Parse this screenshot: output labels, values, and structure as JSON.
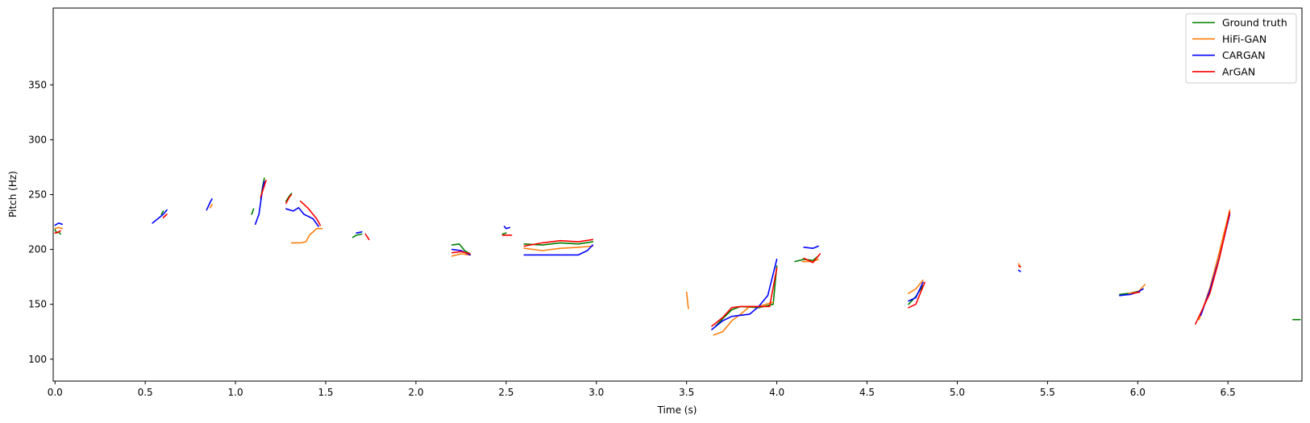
{
  "chart_data": {
    "type": "line",
    "xlabel": "Time (s)",
    "ylabel": "Pitch (Hz)",
    "xlim": [
      -0.01,
      6.91
    ],
    "ylim": [
      80,
      420
    ],
    "xticks": [
      0.0,
      0.5,
      1.0,
      1.5,
      2.0,
      2.5,
      3.0,
      3.5,
      4.0,
      4.5,
      5.0,
      5.5,
      6.0,
      6.5
    ],
    "xtick_labels": [
      "0.0",
      "0.5",
      "1.0",
      "1.5",
      "2.0",
      "2.5",
      "3.0",
      "3.5",
      "4.0",
      "4.5",
      "5.0",
      "5.5",
      "6.0",
      "6.5"
    ],
    "yticks": [
      100,
      150,
      200,
      250,
      300,
      350
    ],
    "ytick_labels": [
      "100",
      "150",
      "200",
      "250",
      "300",
      "350"
    ],
    "grid": false,
    "legend_position": "top-right",
    "series": [
      {
        "name": "Ground truth",
        "color": "#008000",
        "segments": [
          [
            [
              0.0,
              218
            ],
            [
              0.01,
              215
            ],
            [
              0.02,
              216
            ],
            [
              0.03,
              214
            ]
          ],
          [
            [
              0.59,
              232
            ],
            [
              0.6,
              235
            ]
          ],
          [
            [
              1.09,
              232
            ],
            [
              1.1,
              237
            ]
          ],
          [
            [
              1.14,
              246
            ],
            [
              1.15,
              257
            ],
            [
              1.16,
              265
            ]
          ],
          [
            [
              1.28,
              244
            ],
            [
              1.3,
              249
            ],
            [
              1.31,
              251
            ]
          ],
          [
            [
              1.65,
              211
            ],
            [
              1.67,
              213
            ],
            [
              1.7,
              214
            ]
          ],
          [
            [
              2.2,
              204
            ],
            [
              2.24,
              205
            ],
            [
              2.27,
              199
            ],
            [
              2.3,
              196
            ]
          ],
          [
            [
              2.48,
              214
            ],
            [
              2.5,
              215
            ]
          ],
          [
            [
              2.6,
              205
            ],
            [
              2.7,
              204
            ],
            [
              2.8,
              206
            ],
            [
              2.9,
              205
            ],
            [
              2.98,
              207
            ]
          ],
          [
            [
              3.66,
              130
            ],
            [
              3.7,
              137
            ],
            [
              3.75,
              145
            ],
            [
              3.8,
              148
            ],
            [
              3.9,
              147
            ],
            [
              3.98,
              150
            ],
            [
              4.0,
              185
            ]
          ],
          [
            [
              4.1,
              189
            ],
            [
              4.15,
              191
            ],
            [
              4.2,
              190
            ],
            [
              4.23,
              194
            ]
          ],
          [
            [
              4.73,
              150
            ],
            [
              4.77,
              157
            ],
            [
              4.81,
              167
            ]
          ],
          [
            [
              5.9,
              159
            ],
            [
              5.95,
              160
            ],
            [
              6.01,
              162
            ]
          ],
          [
            [
              6.86,
              136
            ],
            [
              6.9,
              136
            ]
          ]
        ]
      },
      {
        "name": "HiFi-GAN",
        "color": "#ff7f0e",
        "segments": [
          [
            [
              0.0,
              219
            ],
            [
              0.02,
              220
            ],
            [
              0.04,
              219
            ]
          ],
          [
            [
              0.86,
              238
            ],
            [
              0.87,
              241
            ]
          ],
          [
            [
              1.31,
              206
            ],
            [
              1.36,
              206
            ],
            [
              1.39,
              207
            ],
            [
              1.41,
              213
            ],
            [
              1.45,
              219
            ],
            [
              1.48,
              219
            ]
          ],
          [
            [
              2.2,
              194
            ],
            [
              2.25,
              196
            ],
            [
              2.3,
              195
            ]
          ],
          [
            [
              2.6,
              201
            ],
            [
              2.7,
              199
            ],
            [
              2.8,
              201
            ],
            [
              2.9,
              202
            ],
            [
              2.98,
              203
            ]
          ],
          [
            [
              3.5,
              161
            ],
            [
              3.51,
              146
            ]
          ],
          [
            [
              3.65,
              122
            ],
            [
              3.7,
              125
            ],
            [
              3.75,
              135
            ],
            [
              3.8,
              141
            ],
            [
              3.85,
              148
            ],
            [
              3.9,
              148
            ],
            [
              3.98,
              152
            ]
          ],
          [
            [
              4.14,
              189
            ],
            [
              4.2,
              189
            ],
            [
              4.23,
              191
            ]
          ],
          [
            [
              4.73,
              160
            ],
            [
              4.77,
              164
            ],
            [
              4.81,
              172
            ]
          ],
          [
            [
              5.34,
              187
            ],
            [
              5.35,
              184
            ]
          ],
          [
            [
              5.95,
              160
            ],
            [
              6.0,
              161
            ],
            [
              6.04,
              168
            ]
          ],
          [
            [
              6.34,
              136
            ],
            [
              6.4,
              165
            ],
            [
              6.45,
              196
            ],
            [
              6.51,
              236
            ]
          ]
        ]
      },
      {
        "name": "CARGAN",
        "color": "#0000ff",
        "segments": [
          [
            [
              0.0,
              222
            ],
            [
              0.02,
              224
            ],
            [
              0.04,
              223
            ]
          ],
          [
            [
              0.54,
              224
            ],
            [
              0.57,
              228
            ],
            [
              0.6,
              232
            ],
            [
              0.62,
              236
            ]
          ],
          [
            [
              0.84,
              236
            ],
            [
              0.86,
              243
            ],
            [
              0.87,
              246
            ]
          ],
          [
            [
              1.11,
              223
            ],
            [
              1.13,
              232
            ],
            [
              1.15,
              255
            ],
            [
              1.16,
              262
            ]
          ],
          [
            [
              1.28,
              237
            ],
            [
              1.32,
              235
            ],
            [
              1.35,
              238
            ],
            [
              1.38,
              232
            ],
            [
              1.43,
              228
            ],
            [
              1.46,
              221
            ]
          ],
          [
            [
              1.67,
              215
            ],
            [
              1.7,
              216
            ]
          ],
          [
            [
              2.2,
              200
            ],
            [
              2.25,
              199
            ],
            [
              2.3,
              195
            ]
          ],
          [
            [
              2.49,
              221
            ],
            [
              2.5,
              219
            ],
            [
              2.52,
              220
            ]
          ],
          [
            [
              2.6,
              195
            ],
            [
              2.7,
              195
            ],
            [
              2.8,
              195
            ],
            [
              2.9,
              195
            ],
            [
              2.95,
              199
            ],
            [
              2.98,
              204
            ]
          ],
          [
            [
              3.64,
              127
            ],
            [
              3.7,
              135
            ],
            [
              3.75,
              139
            ],
            [
              3.8,
              140
            ],
            [
              3.85,
              141
            ],
            [
              3.9,
              148
            ],
            [
              3.95,
              158
            ],
            [
              4.0,
              191
            ]
          ],
          [
            [
              4.15,
              202
            ],
            [
              4.2,
              201
            ],
            [
              4.23,
              203
            ]
          ],
          [
            [
              4.73,
              153
            ],
            [
              4.77,
              156
            ],
            [
              4.81,
              170
            ]
          ],
          [
            [
              5.34,
              181
            ],
            [
              5.35,
              180
            ]
          ],
          [
            [
              5.9,
              158
            ],
            [
              5.96,
              159
            ],
            [
              6.0,
              161
            ],
            [
              6.03,
              164
            ]
          ],
          [
            [
              6.35,
              140
            ],
            [
              6.4,
              163
            ],
            [
              6.45,
              191
            ],
            [
              6.51,
              232
            ]
          ]
        ]
      },
      {
        "name": "ArGAN",
        "color": "#ff0000",
        "segments": [
          [
            [
              0.0,
              215
            ],
            [
              0.02,
              216
            ],
            [
              0.03,
              217
            ]
          ],
          [
            [
              0.6,
              229
            ],
            [
              0.62,
              232
            ]
          ],
          [
            [
              1.14,
              248
            ],
            [
              1.16,
              258
            ],
            [
              1.17,
              263
            ]
          ],
          [
            [
              1.28,
              242
            ],
            [
              1.3,
              248
            ],
            [
              1.31,
              250
            ]
          ],
          [
            [
              1.36,
              244
            ],
            [
              1.4,
              238
            ],
            [
              1.45,
              228
            ],
            [
              1.47,
              222
            ]
          ],
          [
            [
              1.72,
              214
            ],
            [
              1.74,
              209
            ]
          ],
          [
            [
              2.2,
              197
            ],
            [
              2.25,
              198
            ],
            [
              2.3,
              196
            ]
          ],
          [
            [
              2.48,
              213
            ],
            [
              2.53,
              213
            ]
          ],
          [
            [
              2.6,
              203
            ],
            [
              2.7,
              206
            ],
            [
              2.8,
              208
            ],
            [
              2.9,
              207
            ],
            [
              2.98,
              209
            ]
          ],
          [
            [
              3.64,
              130
            ],
            [
              3.7,
              138
            ],
            [
              3.75,
              147
            ],
            [
              3.8,
              148
            ],
            [
              3.85,
              148
            ],
            [
              3.9,
              148
            ],
            [
              3.96,
              148
            ],
            [
              4.0,
              183
            ]
          ],
          [
            [
              4.15,
              192
            ],
            [
              4.2,
              188
            ],
            [
              4.24,
              196
            ]
          ],
          [
            [
              4.73,
              147
            ],
            [
              4.77,
              150
            ],
            [
              4.82,
              170
            ]
          ],
          [
            [
              5.34,
              185
            ],
            [
              5.35,
              184
            ]
          ],
          [
            [
              5.97,
              160
            ],
            [
              6.01,
              161
            ]
          ],
          [
            [
              6.32,
              132
            ],
            [
              6.4,
              160
            ],
            [
              6.45,
              190
            ],
            [
              6.51,
              234
            ]
          ]
        ]
      }
    ]
  }
}
